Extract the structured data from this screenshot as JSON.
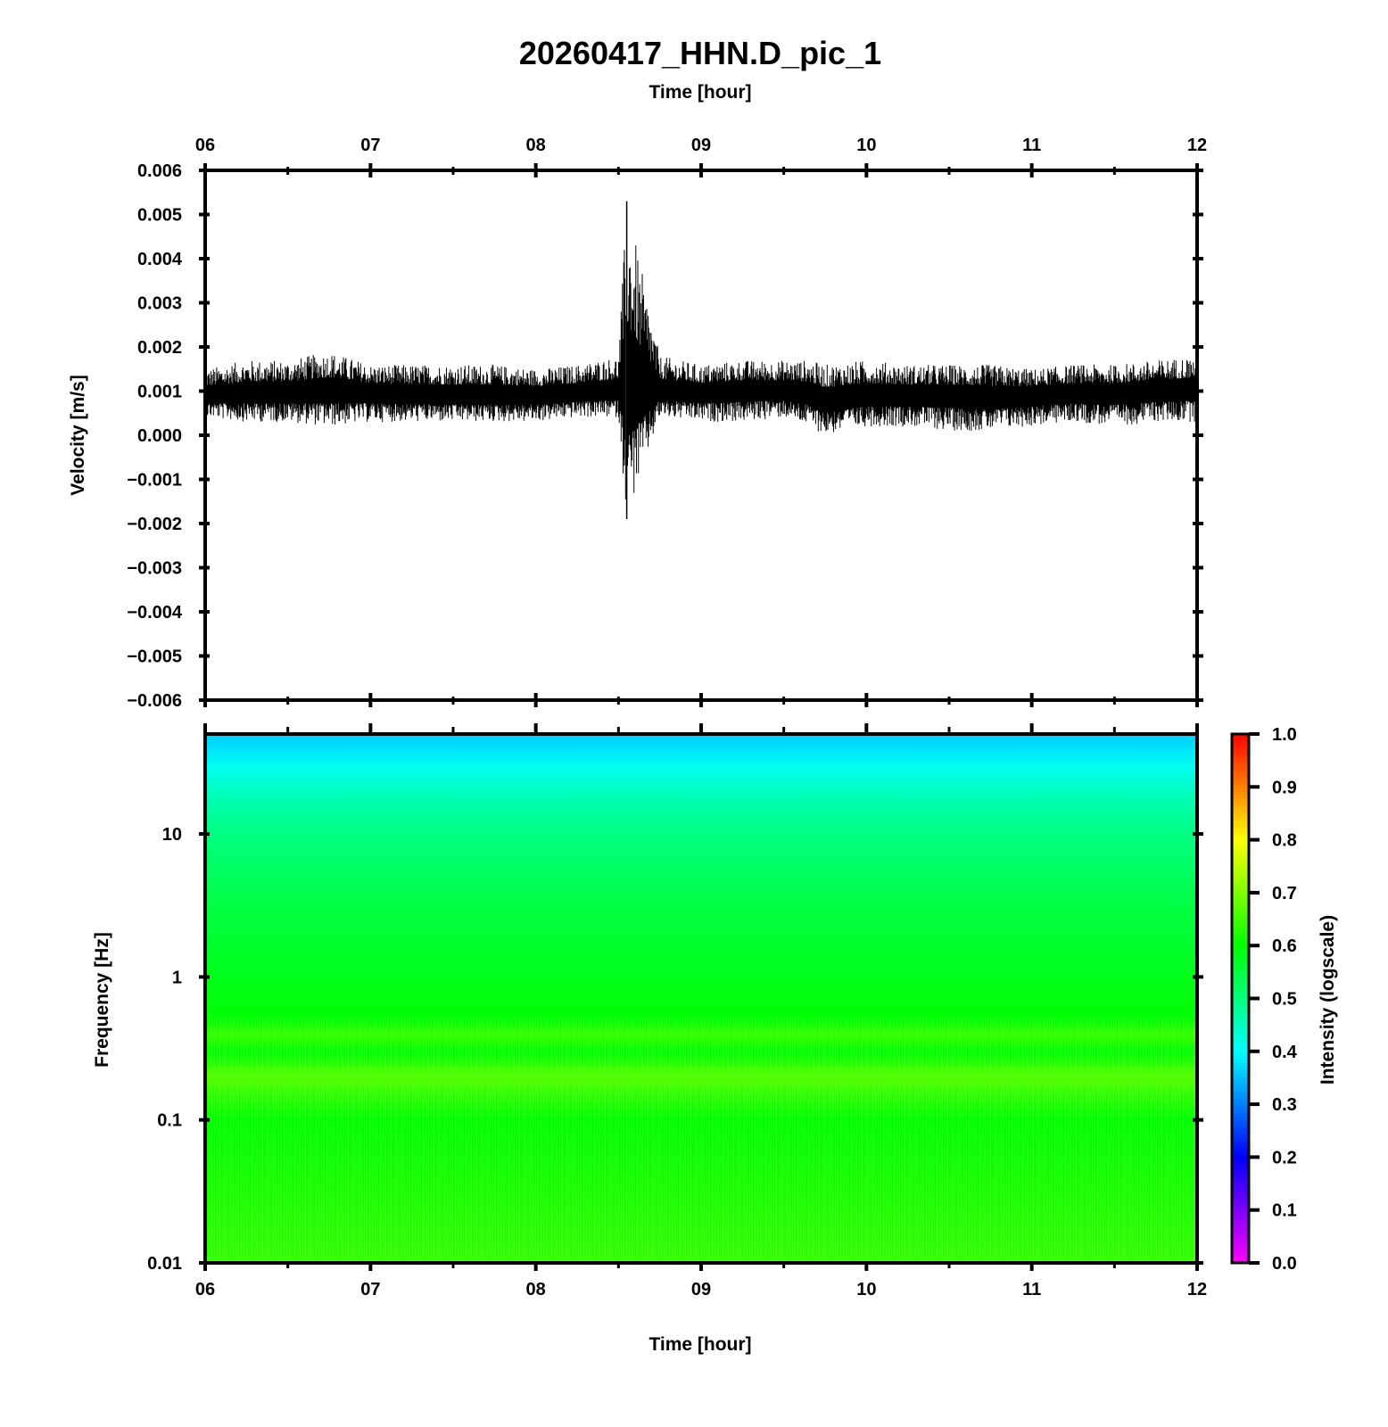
{
  "chart_data": [
    {
      "type": "line",
      "title": "20260417_HHN.D_pic_1",
      "xlabel": "Time [hour]",
      "ylabel": "Velocity [m/s]",
      "xlim": [
        6,
        12
      ],
      "ylim": [
        -0.006,
        0.006
      ],
      "x_tick_labels": [
        "06",
        "07",
        "08",
        "09",
        "10",
        "11",
        "12"
      ],
      "y_tick_labels": [
        "0.006",
        "0.005",
        "0.004",
        "0.003",
        "0.002",
        "0.001",
        "0.000",
        "−0.001",
        "−0.002",
        "−0.003",
        "−0.004",
        "−0.005",
        "−0.006"
      ],
      "y_ticks": [
        0.006,
        0.005,
        0.004,
        0.003,
        0.002,
        0.001,
        0.0,
        -0.001,
        -0.002,
        -0.003,
        -0.004,
        -0.005,
        -0.006
      ],
      "series": [
        {
          "values_note_free": true,
          "x": [
            6.0,
            6.25,
            6.5,
            6.75,
            7.0,
            7.25,
            7.5,
            7.75,
            8.0,
            8.25,
            8.5,
            8.55,
            8.75,
            9.0,
            9.25,
            9.5,
            9.65,
            9.75,
            10.0,
            10.25,
            10.5,
            10.75,
            11.0,
            11.25,
            11.5,
            11.75,
            12.0
          ],
          "envelope_max": [
            0.0015,
            0.0017,
            0.0017,
            0.0019,
            0.0016,
            0.0016,
            0.0016,
            0.0016,
            0.0015,
            0.0016,
            0.0018,
            0.0053,
            0.0018,
            0.0016,
            0.0017,
            0.0017,
            0.0017,
            0.0016,
            0.0017,
            0.0016,
            0.0016,
            0.0016,
            0.0015,
            0.0016,
            0.0016,
            0.0017,
            0.0018
          ],
          "envelope_min": [
            0.0004,
            0.0003,
            0.0003,
            0.0002,
            0.0003,
            0.0003,
            0.0003,
            0.0003,
            0.0003,
            0.0004,
            0.0004,
            -0.0019,
            0.0004,
            0.0003,
            0.0003,
            0.0004,
            0.0002,
            0.0,
            0.0002,
            0.0002,
            0.0001,
            0.0001,
            0.0002,
            0.0003,
            0.0002,
            0.0003,
            0.0003
          ],
          "baseline": [
            0.0009,
            0.00095,
            0.00095,
            0.001,
            0.00095,
            0.00092,
            0.0009,
            0.0009,
            0.0009,
            0.00095,
            0.001,
            0.001,
            0.001,
            0.00095,
            0.001,
            0.001,
            0.00095,
            0.0008,
            0.0009,
            0.0009,
            0.0009,
            0.00085,
            0.0009,
            0.00095,
            0.00095,
            0.001,
            0.00105
          ]
        }
      ]
    },
    {
      "type": "heatmap",
      "xlabel": "Time [hour]",
      "ylabel": "Frequency [Hz]",
      "xlim": [
        6,
        12
      ],
      "ylim": [
        0.01,
        50
      ],
      "y_scale": "log",
      "x_tick_labels": [
        "06",
        "07",
        "08",
        "09",
        "10",
        "11",
        "12"
      ],
      "y_ticks": [
        10,
        1,
        0.1,
        0.01
      ],
      "y_tick_labels": [
        "10",
        "1",
        "0.1",
        "0.01"
      ],
      "colorbar": {
        "label": "Intensity (logscale)",
        "range": [
          0.0,
          1.0
        ],
        "tick_labels": [
          "1.0",
          "0.9",
          "0.8",
          "0.7",
          "0.6",
          "0.5",
          "0.4",
          "0.3",
          "0.2",
          "0.1",
          "0.0"
        ],
        "colors": [
          "#ff00ff",
          "#0000ff",
          "#00ffff",
          "#00ff00",
          "#ffff00",
          "#ff0000"
        ]
      },
      "intensity_profile": {
        "frequency_hz": [
          50,
          30,
          20,
          10,
          3,
          1,
          0.5,
          0.4,
          0.3,
          0.2,
          0.1,
          0.03,
          0.01
        ],
        "intensity": [
          0.36,
          0.41,
          0.45,
          0.5,
          0.55,
          0.58,
          0.6,
          0.64,
          0.6,
          0.66,
          0.6,
          0.62,
          0.64
        ]
      }
    }
  ]
}
